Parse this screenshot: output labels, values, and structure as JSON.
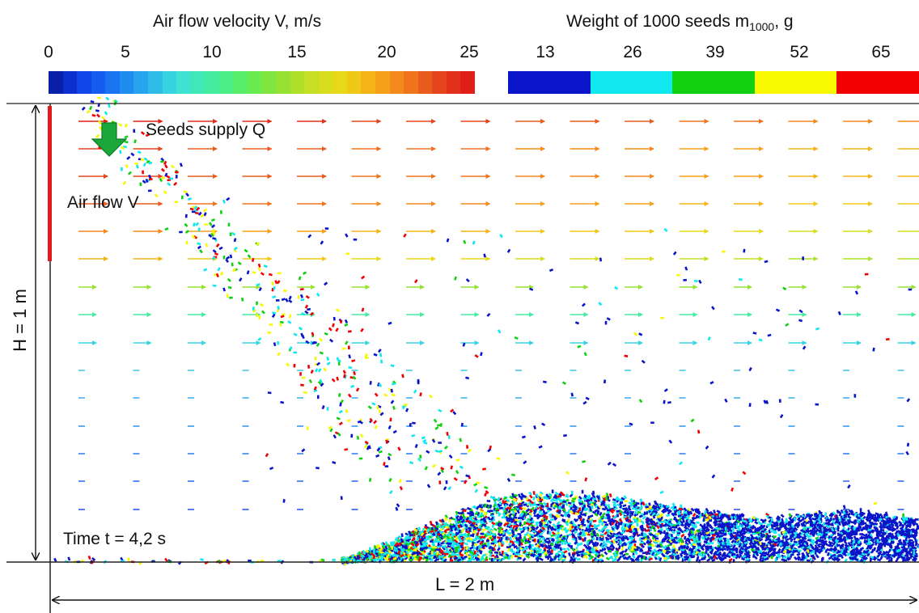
{
  "velocity_legend": {
    "title": "Air flow velocity V, m/s",
    "ticks": [
      "0",
      "5",
      "10",
      "15",
      "20",
      "25"
    ],
    "colors": [
      "#0a1fa8",
      "#0d2fd0",
      "#1045e8",
      "#155cf0",
      "#1a73f0",
      "#1f8cf0",
      "#27a4f0",
      "#2fbde8",
      "#38d3e0",
      "#3ee2d0",
      "#40e8b8",
      "#44eca0",
      "#4cee86",
      "#58ee6a",
      "#68ec50",
      "#7ee63e",
      "#96e232",
      "#aee02a",
      "#c4df24",
      "#d8dd1e",
      "#e8d81a",
      "#f0c818",
      "#f4b418",
      "#f6a01a",
      "#f48a1c",
      "#f0741e",
      "#ea5c1e",
      "#e4451c",
      "#e0301a",
      "#e02018"
    ]
  },
  "weight_legend": {
    "title": "Weight of 1000 seeds m",
    "title_sub": "1000",
    "title_end": ", g",
    "ticks": [
      "13",
      "26",
      "39",
      "52",
      "65"
    ],
    "colors": [
      "#0a14c8",
      "#10e8f0",
      "#10d010",
      "#f8f800",
      "#f00000"
    ]
  },
  "scene": {
    "seeds_supply_label": "Seeds supply Q",
    "air_flow_label": "Air flow V",
    "time_label": "Time t = 4,2 s",
    "height_label": "H = 1 m",
    "length_label": "L = 2 m",
    "supply_arrow_color": "#1aa83a",
    "inlet_color": "#e01a1a"
  }
}
